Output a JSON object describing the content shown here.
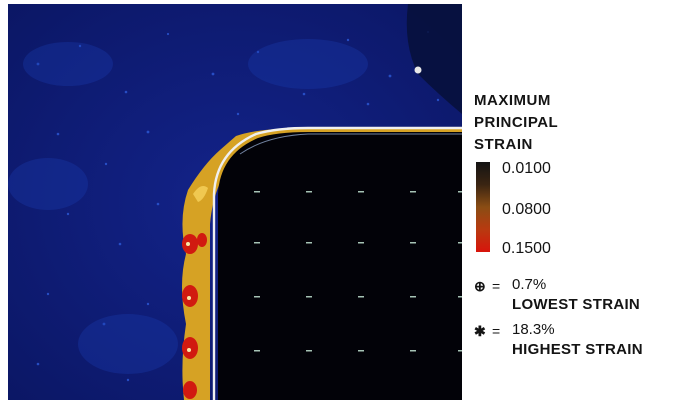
{
  "legend": {
    "title_lines": [
      "MAXIMUM",
      "PRINCIPAL",
      "STRAIN"
    ],
    "ticks": [
      "0.0100",
      "0.0800",
      "0.1500"
    ],
    "min_marker": {
      "symbol": "⊕",
      "separator": "=",
      "percent": "0.7%",
      "label": "LOWEST STRAIN"
    },
    "max_marker": {
      "symbol": "✱",
      "separator": "=",
      "percent": "18.3%",
      "label": "HIGHEST STRAIN"
    }
  },
  "colors": {
    "background_field": "#0c1a78",
    "region_dark": "#020208",
    "strain_band": "#d6a224",
    "strain_hot": "#d11a10",
    "edge_highlight": "#f0f0f0"
  }
}
